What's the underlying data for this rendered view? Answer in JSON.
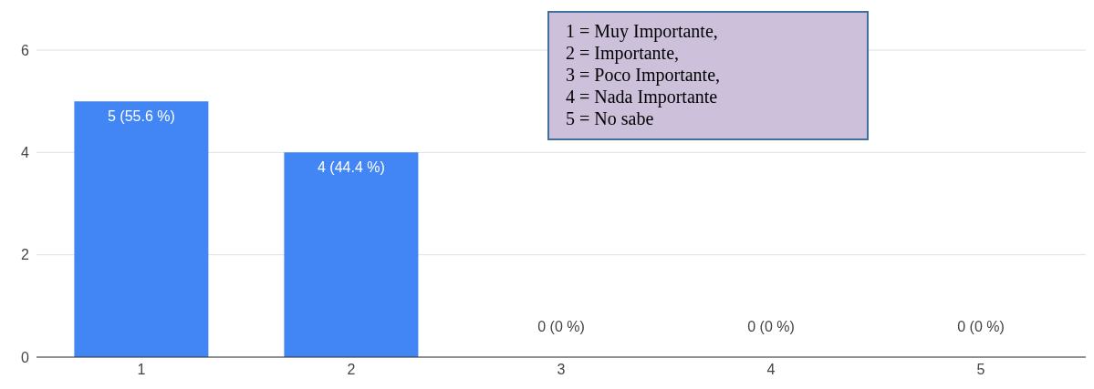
{
  "chart_data": {
    "type": "bar",
    "categories": [
      "1",
      "2",
      "3",
      "4",
      "5"
    ],
    "values": [
      5,
      4,
      0,
      0,
      0
    ],
    "color": "#4285f4",
    "value_labels": [
      "5 (55.6 %)",
      "4 (44.4 %)",
      "0 (0 %)",
      "0 (0 %)",
      "0 (0 %)"
    ],
    "ylim": [
      0,
      6
    ],
    "yticks": [
      0,
      2,
      4,
      6
    ],
    "grid": "y",
    "annotations": [
      "1 = Muy Importante,",
      "2 = Importante,",
      "3 = Poco Importante,",
      "4 = Nada Importante",
      "5 = No sabe"
    ]
  }
}
